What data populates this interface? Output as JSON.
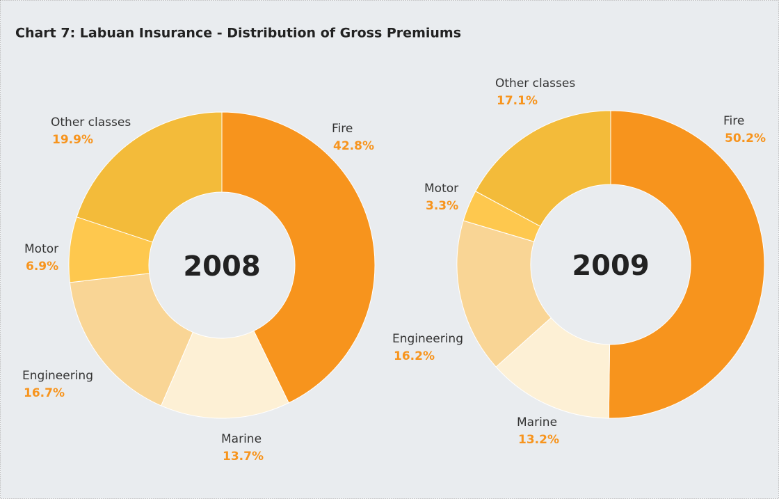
{
  "title": "Chart 7: Labuan Insurance - Distribution of Gross Premiums",
  "chart_data": [
    {
      "type": "donut",
      "label": "2008",
      "categories": [
        "Fire",
        "Marine",
        "Engineering",
        "Motor",
        "Other classes"
      ],
      "values": [
        42.8,
        13.7,
        16.7,
        6.9,
        19.9
      ],
      "value_labels": [
        "42.8%",
        "13.7%",
        "16.7%",
        "6.9%",
        "19.9%"
      ],
      "colors": [
        "#f7941d",
        "#fdf0d5",
        "#f9d595",
        "#fec84e",
        "#f3bb3a"
      ]
    },
    {
      "type": "donut",
      "label": "2009",
      "categories": [
        "Fire",
        "Marine",
        "Engineering",
        "Motor",
        "Other classes"
      ],
      "values": [
        50.2,
        13.2,
        16.2,
        3.3,
        17.1
      ],
      "value_labels": [
        "50.2%",
        "13.2%",
        "16.2%",
        "3.3%",
        "17.1%"
      ],
      "colors": [
        "#f7941d",
        "#fdf0d5",
        "#f9d595",
        "#fec84e",
        "#f3bb3a"
      ]
    }
  ]
}
